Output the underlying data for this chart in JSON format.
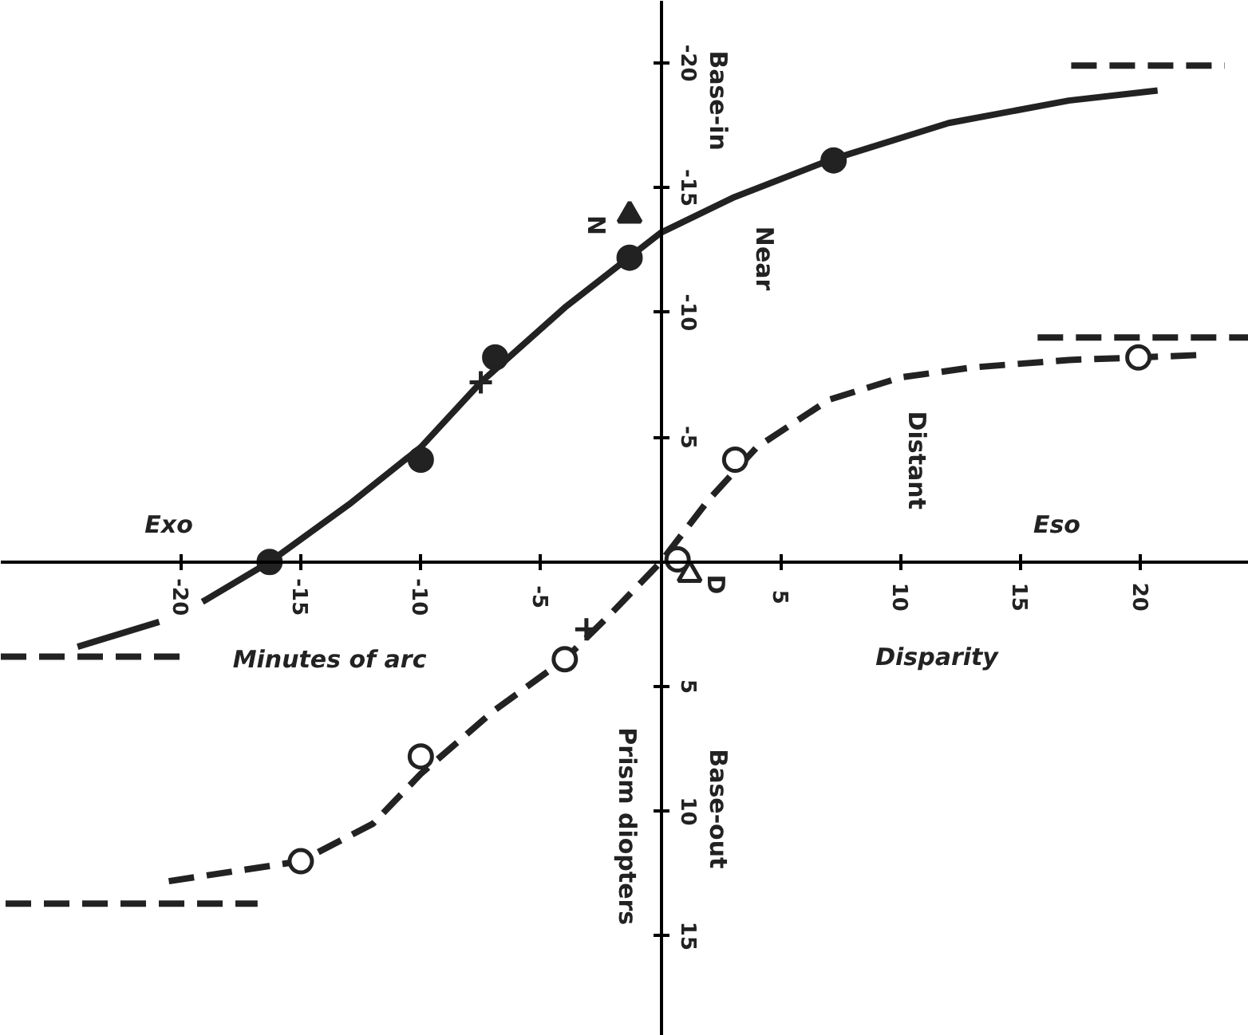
{
  "chart_data": {
    "type": "line",
    "xlabel": "Disparity",
    "ylabel": "Prism diopters",
    "xlim": [
      -27.5,
      24.5
    ],
    "ylim": [
      19,
      -22.5
    ],
    "xticks": [
      -20,
      -15,
      -10,
      -5,
      5,
      10,
      15,
      20
    ],
    "yticks": [
      -20,
      -15,
      -10,
      -5,
      5,
      10,
      15
    ],
    "grid": false,
    "series": [
      {
        "name": "Near",
        "color": "#222222",
        "line_style": "solid",
        "x": [
          -24.3,
          -20.9,
          null,
          -19.1,
          -16.3,
          -13,
          -10,
          -7.5,
          -4,
          0,
          3,
          7,
          12,
          17,
          20.7
        ],
        "values": [
          3.4,
          2.4,
          null,
          1.6,
          0,
          -2.3,
          -4.6,
          -7.2,
          -10.2,
          -13.2,
          -14.6,
          -16.1,
          -17.6,
          -18.5,
          -18.9
        ]
      },
      {
        "name": "Distant",
        "color": "#222222",
        "line_style": "dashed",
        "x": [
          -20.5,
          -15,
          -12,
          -10,
          -7,
          -4,
          -2,
          0,
          2,
          4,
          7,
          10,
          13,
          17,
          20,
          22.5
        ],
        "values": [
          12.8,
          12,
          10.5,
          8.5,
          6,
          3.9,
          2,
          0,
          -2.5,
          -4.6,
          -6.5,
          -7.4,
          -7.8,
          -8.1,
          -8.2,
          -8.3
        ]
      },
      {
        "color": "#222222",
        "line_style": "dashed",
        "x": [
          -27.5,
          -20,
          null,
          17.1,
          23.5,
          null,
          -27.3,
          -16.8,
          null,
          15.7,
          24.5
        ],
        "values": [
          3.8,
          3.8,
          null,
          -19.9,
          -19.9,
          null,
          13.7,
          13.7,
          null,
          -9.0,
          -9.0
        ]
      },
      {
        "type": "scatter",
        "marker": "circle",
        "color": "#222222",
        "x": [
          -16.3,
          -10,
          -6.9,
          -1.3,
          7.2
        ],
        "values": [
          0,
          -4.1,
          -8.2,
          -12.2,
          -16.1
        ]
      },
      {
        "type": "scatter",
        "marker": "triangle",
        "color": "#ffffff",
        "x": [
          1.2
        ],
        "values": [
          0.5
        ]
      },
      {
        "type": "scatter",
        "marker": "circle",
        "color": "#ffffff",
        "x": [
          -15,
          -10,
          -4,
          0.7,
          3.1,
          19.9
        ],
        "values": [
          12,
          7.8,
          3.9,
          -0.1,
          -4.1,
          -8.2
        ]
      },
      {
        "type": "scatter",
        "marker": "cross",
        "color": "#222222",
        "x": [
          -7.5,
          -3.1
        ],
        "values": [
          -7.2,
          2.7
        ]
      },
      {
        "type": "scatter",
        "marker": "triangle",
        "color": "#222222",
        "x": [
          -1.3
        ],
        "values": [
          -13.9
        ]
      }
    ],
    "annotations": [
      "Exo",
      "Eso",
      "Minutes of arc",
      "Base-in",
      "Base-out",
      "N",
      "D"
    ]
  }
}
